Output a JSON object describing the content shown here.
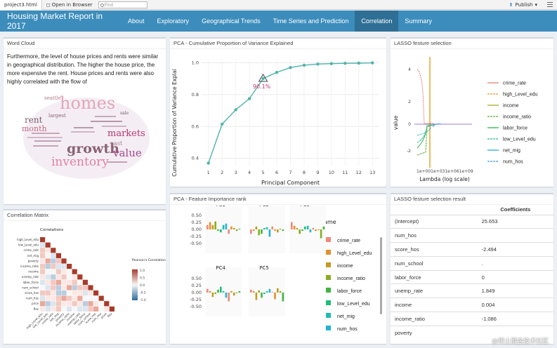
{
  "browser": {
    "file": "project3.html",
    "open": "Open in Browser",
    "find": "Find",
    "publish": "Publish"
  },
  "nav": {
    "brand": "Housing Market Report in 2017",
    "tabs": [
      "About",
      "Exploratory",
      "Geographical Trends",
      "Time Series and Prediction",
      "Correlation",
      "Summary"
    ],
    "active": "Correlation"
  },
  "wordcloud": {
    "title": "Word Cloud",
    "text": "Furthermore, the level of house prices and rents were similar in geographical distribution. The higher the house price, the more expensive the rent. House prices and rents were also highly correlated with the flow of",
    "words": [
      "homes",
      "growth",
      "inventory",
      "markets",
      "value",
      "rent",
      "month",
      "seattle",
      "sale",
      "past",
      "largest"
    ]
  },
  "corr": {
    "title": "Correlation Matrix",
    "subtitle": "Correlations",
    "legend_title": "Pearson's Correlation",
    "legend_ticks": [
      "1.0",
      "0.5",
      "0.0",
      "-0.5",
      "-1.0"
    ],
    "vars": [
      "high_Level_edu",
      "low_Level_edu",
      "crime_rate",
      "net_mig",
      "poverty",
      "income_ratio",
      "income",
      "unemp_rate",
      "labor_force",
      "num_school",
      "score_hos",
      "num_hos",
      "price",
      "flex"
    ]
  },
  "pca": {
    "title": "PCA - Cumulative Proportion of Variance Explained",
    "chart_data": {
      "type": "line",
      "x": [
        1,
        2,
        3,
        4,
        5,
        6,
        7,
        8,
        9,
        10,
        11,
        12,
        13
      ],
      "values": [
        0.37,
        0.615,
        0.705,
        0.775,
        0.901,
        0.94,
        0.97,
        0.985,
        0.992,
        0.995,
        0.997,
        0.998,
        1.0
      ],
      "xlabel": "Principal Component",
      "ylabel": "Cumulative Proportion of Variance Explai",
      "ylim": [
        0.35,
        1.02
      ],
      "yticks": [
        "0.4",
        "0.6",
        "0.8",
        "1.0"
      ],
      "annotation": "90.1%"
    }
  },
  "lasso": {
    "title": "LASSO festure selection",
    "ylabel": "value",
    "xlabel": "Lambda (log scale)",
    "xticks": "1e+001e+031e+061e+09",
    "yticks": [
      "4",
      "2",
      "0",
      "-2"
    ],
    "legend": [
      {
        "name": "crime_rate",
        "color": "#e8816e"
      },
      {
        "name": "high_Level_edu",
        "color": "#d99a2b"
      },
      {
        "name": "income",
        "color": "#a7a82a"
      },
      {
        "name": "income_ratio",
        "color": "#5fae2e"
      },
      {
        "name": "labor_force",
        "color": "#2db34a"
      },
      {
        "name": "low_Level_edu",
        "color": "#24b69b"
      },
      {
        "name": "net_mig",
        "color": "#22b0c8"
      },
      {
        "name": "num_hos",
        "color": "#3d9ae0"
      }
    ]
  },
  "feat": {
    "title": "PCA - Feature Importance rank",
    "panels": [
      "PC1",
      "PC2",
      "PC3",
      "PC4",
      "PC5"
    ],
    "yticks": [
      "0.50",
      "0.25",
      "0.00",
      "-0.25",
      "-0.50"
    ],
    "legend_title": "name",
    "legend": [
      {
        "name": "crime_rate",
        "color": "#f0877a"
      },
      {
        "name": "high_Level_edu",
        "color": "#e3902b"
      },
      {
        "name": "income",
        "color": "#c49a1f"
      },
      {
        "name": "income_ratio",
        "color": "#86ad1f"
      },
      {
        "name": "labor_force",
        "color": "#3fb53f"
      },
      {
        "name": "low_Level_edu",
        "color": "#22bc7a"
      },
      {
        "name": "net_mig",
        "color": "#1ebcb5"
      },
      {
        "name": "num_hos",
        "color": "#22b4d6"
      }
    ]
  },
  "result": {
    "title": "LASSO festure selection result",
    "header": "Coefficients",
    "rows": [
      {
        "name": "(Intercept)",
        "value": "25.653"
      },
      {
        "name": "num_hos",
        "value": ""
      },
      {
        "name": "score_hos",
        "value": "-2.494"
      },
      {
        "name": "num_school",
        "value": "."
      },
      {
        "name": "labor_force",
        "value": "0"
      },
      {
        "name": "unemp_rate",
        "value": "1.849"
      },
      {
        "name": "income",
        "value": "0.004"
      },
      {
        "name": "income_ratio",
        "value": "-1.086"
      },
      {
        "name": "poverty",
        "value": ""
      }
    ]
  },
  "watermark": "@稀土掘金技术社区"
}
